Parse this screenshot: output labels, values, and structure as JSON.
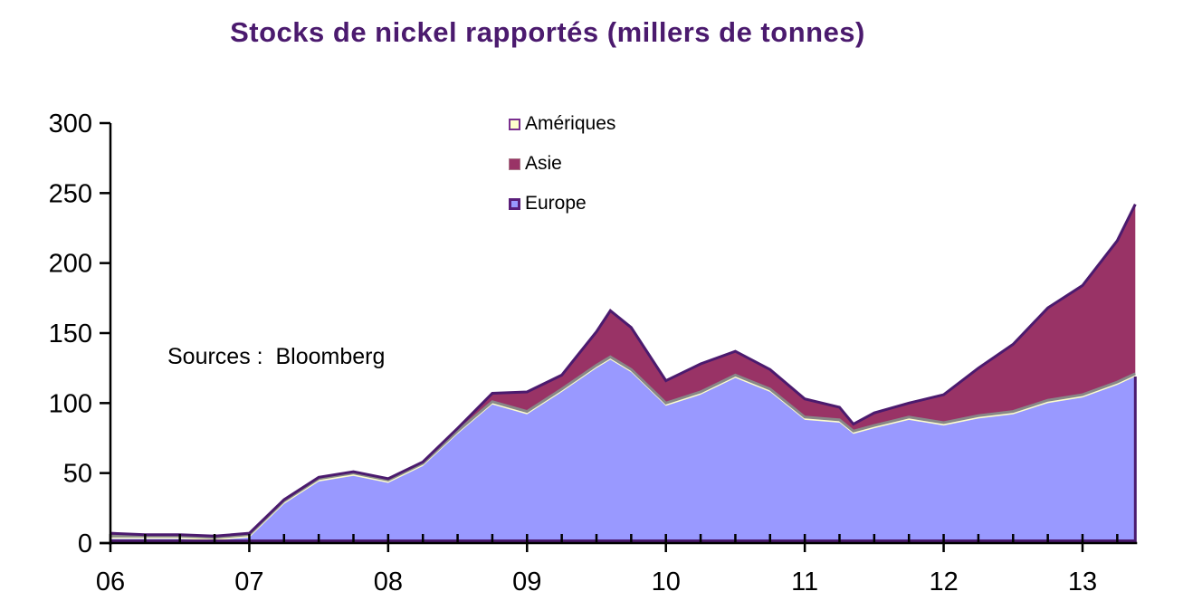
{
  "title": "Stocks  de nickel rapportés (millers de tonnes)",
  "source_note": "Sources :  Bloomberg",
  "legend": [
    {
      "label": "Amériques",
      "fill": "#ffffcc",
      "border": "#7a2f8f"
    },
    {
      "label": "Asie",
      "fill": "#993366",
      "border": "#993366"
    },
    {
      "label": "Europe",
      "fill": "#9999ff",
      "border": "#5a1e7a"
    }
  ],
  "colors": {
    "europe": "#9999ff",
    "asie": "#993366",
    "ameriques_line": "#888888",
    "outline": "#4b1a6e",
    "title": "#4b1a6e"
  },
  "chart_data": {
    "type": "area",
    "stacked": true,
    "title": "Stocks  de nickel rapportés (millers de tonnes)",
    "xlabel": "",
    "ylabel": "",
    "ylim": [
      0,
      300
    ],
    "yticks": [
      0,
      50,
      100,
      150,
      200,
      250,
      300
    ],
    "xticks": [
      "06",
      "07",
      "08",
      "09",
      "10",
      "11",
      "12",
      "13"
    ],
    "grid": false,
    "legend_position": "top-center",
    "annotations": [
      "Sources :  Bloomberg"
    ],
    "x": [
      2006.0,
      2006.25,
      2006.5,
      2006.75,
      2007.0,
      2007.25,
      2007.5,
      2007.75,
      2008.0,
      2008.25,
      2008.5,
      2008.75,
      2009.0,
      2009.25,
      2009.5,
      2009.6,
      2009.75,
      2010.0,
      2010.25,
      2010.5,
      2010.75,
      2011.0,
      2011.25,
      2011.35,
      2011.5,
      2011.75,
      2012.0,
      2012.25,
      2012.5,
      2012.75,
      2013.0,
      2013.25,
      2013.38
    ],
    "series": [
      {
        "name": "Europe",
        "values": [
          3,
          3,
          3,
          2,
          4,
          28,
          44,
          48,
          43,
          55,
          78,
          99,
          92,
          108,
          125,
          131,
          122,
          98,
          106,
          118,
          108,
          88,
          86,
          78,
          82,
          88,
          84,
          89,
          92,
          100,
          104,
          113,
          119
        ]
      },
      {
        "name": "Asie",
        "values": [
          2,
          1,
          1,
          1,
          1,
          1,
          1,
          1,
          1,
          1,
          2,
          6,
          14,
          10,
          24,
          33,
          30,
          16,
          20,
          17,
          14,
          13,
          9,
          5,
          9,
          10,
          20,
          34,
          48,
          66,
          78,
          101,
          121
        ]
      },
      {
        "name": "Amériques",
        "values": [
          2,
          2,
          2,
          2,
          2,
          2,
          2,
          2,
          2,
          2,
          2,
          2,
          2,
          2,
          2,
          2,
          2,
          2,
          2,
          2,
          2,
          2,
          2,
          2,
          2,
          2,
          2,
          2,
          2,
          2,
          2,
          2,
          2
        ]
      }
    ]
  },
  "axes": {
    "y_ticks": [
      "300",
      "250",
      "200",
      "150",
      "100",
      "50",
      "0"
    ],
    "x_ticks": [
      "06",
      "07",
      "08",
      "09",
      "10",
      "11",
      "12",
      "13"
    ]
  }
}
